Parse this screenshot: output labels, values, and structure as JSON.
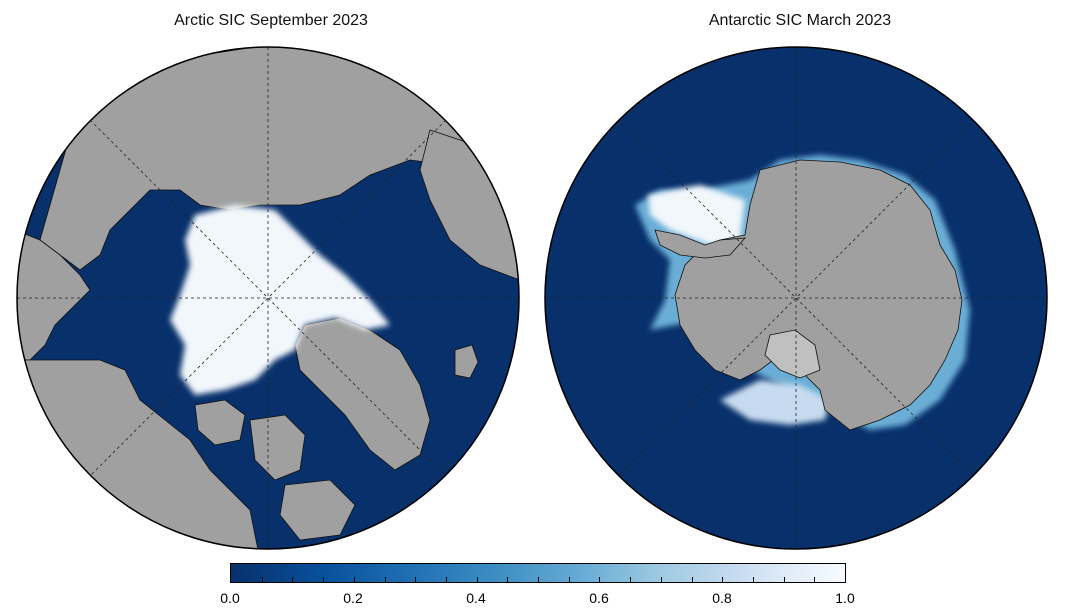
{
  "panels": [
    {
      "title": "Arctic SIC September 2023"
    },
    {
      "title": "Antarctic SIC March 2023"
    }
  ],
  "colorbar": {
    "min": 0.0,
    "max": 1.0,
    "tick_labels": [
      "0.0",
      "0.2",
      "0.4",
      "0.6",
      "0.8",
      "1.0"
    ],
    "colors": [
      "#08306b",
      "#08519c",
      "#2171b5",
      "#4292c6",
      "#6baed6",
      "#9ecae1",
      "#c6dbef",
      "#f7fbff"
    ]
  },
  "colors": {
    "ocean": "#08306b",
    "land": "#a0a0a0",
    "ice": "#f2f7fc"
  }
}
